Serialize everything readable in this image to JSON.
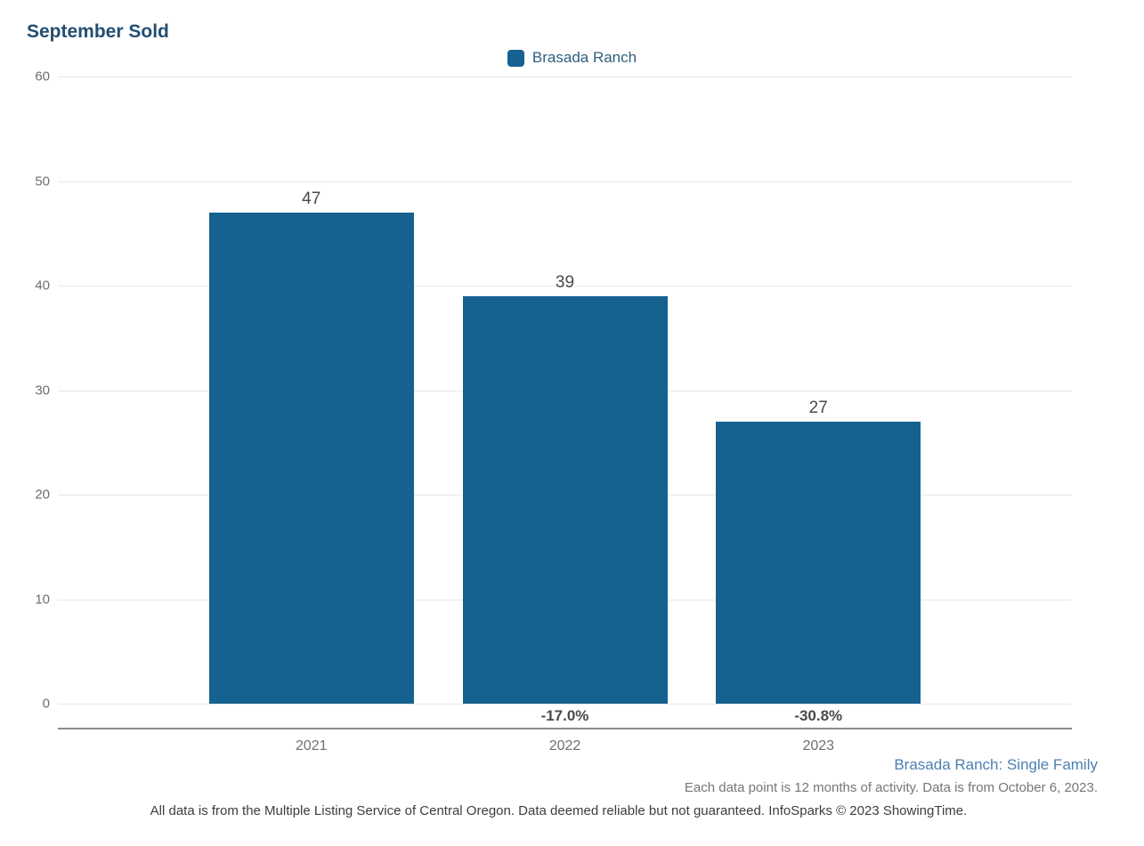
{
  "chart_data": {
    "type": "bar",
    "title": "September Sold",
    "categories": [
      "2021",
      "2022",
      "2023"
    ],
    "series": [
      {
        "name": "Brasada Ranch",
        "values": [
          47,
          39,
          27
        ]
      }
    ],
    "pct_change_labels": [
      "",
      "-17.0%",
      "-30.8%"
    ],
    "y_ticks": [
      0,
      10,
      20,
      30,
      40,
      50,
      60
    ],
    "ylim": [
      0,
      60
    ],
    "xlabel": "",
    "ylabel": "",
    "grid": "horizontal",
    "legend_position": "top-center",
    "bar_color": "#15618F"
  },
  "colors": {
    "title": "#234e71",
    "legend_text": "#2f5e7e",
    "bar": "#15618F",
    "axis_line": "#8a8a8a",
    "gridline": "#e7e7e7",
    "tick_text": "#6f6f6f",
    "value_text": "#4a4a4a",
    "series_description_text": "#4d7fb2"
  },
  "footer": {
    "series_description": "Brasada Ranch: Single Family",
    "data_note": "Each data point is 12 months of activity. Data is from October 6, 2023.",
    "disclaimer": "All data is from the Multiple Listing Service of Central Oregon. Data deemed reliable but not guaranteed. InfoSparks © 2023 ShowingTime."
  }
}
